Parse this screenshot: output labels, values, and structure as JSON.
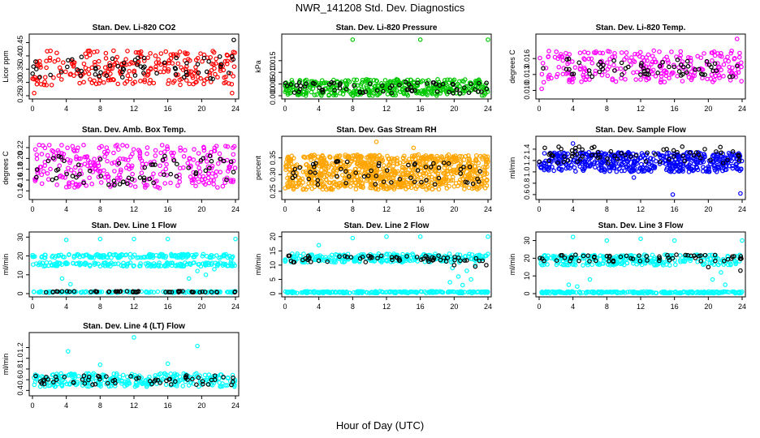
{
  "figure": {
    "title": "NWR_141208 Std. Dev. Diagnostics",
    "xlabel": "Hour of Day (UTC)"
  },
  "chart_data": [
    {
      "type": "scatter",
      "title": "Stan. Dev. Li-820 CO2",
      "ylabel": "Licor ppm",
      "xlim": [
        0,
        24
      ],
      "ylim": [
        0.25,
        0.47
      ],
      "xticks": [
        0,
        4,
        8,
        12,
        16,
        20,
        24
      ],
      "yticks": [
        0.25,
        0.3,
        0.35,
        0.4,
        0.45
      ],
      "ytick_labels": [
        "0.25",
        "0.30",
        "0.35",
        "0.40",
        "0.45"
      ],
      "colors": [
        "#ff0000",
        "#000000"
      ],
      "series": [
        {
          "color": "#ff0000",
          "band": [
            0.29,
            0.42
          ],
          "n": 260,
          "seed": 11
        },
        {
          "color": "#000000",
          "band": [
            0.31,
            0.4
          ],
          "n": 60,
          "seed": 12
        },
        {
          "color": "#ff0000",
          "points": [
            [
              0.2,
              0.26
            ],
            [
              23.6,
              0.26
            ]
          ]
        },
        {
          "color": "#000000",
          "points": [
            [
              23.8,
              0.46
            ]
          ]
        }
      ]
    },
    {
      "type": "scatter",
      "title": "Stan. Dev. Li-820 Pressure",
      "ylabel": "kPa",
      "xlim": [
        0,
        24
      ],
      "ylim": [
        0,
        0.025
      ],
      "xticks": [
        0,
        4,
        8,
        12,
        16,
        20,
        24
      ],
      "yticks": [
        0.0,
        0.005,
        0.01,
        0.015
      ],
      "ytick_labels": [
        "0.000",
        "0.005",
        "0.010",
        "0.015"
      ],
      "colors": [
        "#00c800",
        "#000000"
      ],
      "series": [
        {
          "color": "#00c800",
          "band": [
            0.0,
            0.007
          ],
          "n": 420,
          "seed": 21
        },
        {
          "color": "#000000",
          "band": [
            0.001,
            0.006
          ],
          "n": 70,
          "seed": 22
        },
        {
          "color": "#00c800",
          "points": [
            [
              8,
              0.024
            ],
            [
              16,
              0.024
            ],
            [
              24,
              0.024
            ]
          ]
        }
      ]
    },
    {
      "type": "scatter",
      "title": "Stan. Dev. Li-820 Temp.",
      "ylabel": "degrees C",
      "xlim": [
        0,
        24
      ],
      "ylim": [
        0.009,
        0.02
      ],
      "xticks": [
        0,
        4,
        8,
        12,
        16,
        20,
        24
      ],
      "yticks": [
        0.01,
        0.013,
        0.016
      ],
      "ytick_labels": [
        "0.010",
        "0.013",
        "0.016"
      ],
      "colors": [
        "#ff00ff",
        "#000000"
      ],
      "series": [
        {
          "color": "#ff00ff",
          "band": [
            0.0115,
            0.0175
          ],
          "n": 260,
          "seed": 31
        },
        {
          "color": "#000000",
          "band": [
            0.0125,
            0.016
          ],
          "n": 60,
          "seed": 32
        },
        {
          "color": "#ff00ff",
          "points": [
            [
              23.4,
              0.0197
            ],
            [
              0.3,
              0.0103
            ]
          ]
        }
      ]
    },
    {
      "type": "scatter",
      "title": "Stan. Dev. Amb. Box Temp.",
      "ylabel": "degrees C",
      "xlim": [
        0,
        24
      ],
      "ylim": [
        0.13,
        0.235
      ],
      "xticks": [
        0,
        4,
        8,
        12,
        16,
        20,
        24
      ],
      "yticks": [
        0.14,
        0.16,
        0.18,
        0.2,
        0.22
      ],
      "ytick_labels": [
        "0.14",
        "0.16",
        "0.18",
        "0.20",
        "0.22"
      ],
      "colors": [
        "#ff00ff",
        "#000000"
      ],
      "series": [
        {
          "color": "#ff00ff",
          "band": [
            0.145,
            0.225
          ],
          "n": 300,
          "seed": 41
        },
        {
          "color": "#000000",
          "band": [
            0.15,
            0.205
          ],
          "n": 60,
          "seed": 42
        }
      ]
    },
    {
      "type": "scatter",
      "title": "Stan. Dev. Gas Stream RH",
      "ylabel": "percent",
      "xlim": [
        0,
        24
      ],
      "ylim": [
        0.235,
        0.405
      ],
      "xticks": [
        0,
        4,
        8,
        12,
        16,
        20,
        24
      ],
      "yticks": [
        0.25,
        0.3,
        0.35
      ],
      "ytick_labels": [
        "0.25",
        "0.30",
        "0.35"
      ],
      "colors": [
        "#ffa500",
        "#000000"
      ],
      "series": [
        {
          "color": "#ffa500",
          "band": [
            0.255,
            0.36
          ],
          "n": 900,
          "seed": 51
        },
        {
          "color": "#000000",
          "band": [
            0.27,
            0.34
          ],
          "n": 60,
          "seed": 52
        },
        {
          "color": "#ffa500",
          "points": [
            [
              10.8,
              0.398
            ],
            [
              15.2,
              0.38
            ]
          ]
        }
      ]
    },
    {
      "type": "scatter",
      "title": "Stan. Dev. Sample Flow",
      "ylabel": "ml/min",
      "xlim": [
        0,
        24
      ],
      "ylim": [
        0.57,
        1.57
      ],
      "xticks": [
        0,
        4,
        8,
        12,
        16,
        20,
        24
      ],
      "yticks": [
        0.6,
        0.8,
        1.0,
        1.2,
        1.4
      ],
      "ytick_labels": [
        "0.6",
        "0.8",
        "1.0",
        "1.2",
        "1.4"
      ],
      "colors": [
        "#0000ff",
        "#000000"
      ],
      "series": [
        {
          "color": "#0000ff",
          "band": [
            1.0,
            1.35
          ],
          "n": 500,
          "seed": 61
        },
        {
          "color": "#000000",
          "band": [
            1.15,
            1.45
          ],
          "n": 70,
          "seed": 62
        },
        {
          "color": "#0000ff",
          "points": [
            [
              15.8,
              0.6
            ],
            [
              23.8,
              0.62
            ],
            [
              11.2,
              0.9
            ],
            [
              4.0,
              1.5
            ]
          ]
        }
      ]
    },
    {
      "type": "scatter",
      "title": "Stan. Dev. Line 1 Flow",
      "ylabel": "ml/min",
      "xlim": [
        0,
        24
      ],
      "ylim": [
        0,
        31
      ],
      "xticks": [
        0,
        4,
        8,
        12,
        16,
        20,
        24
      ],
      "yticks": [
        0,
        10,
        20,
        30
      ],
      "ytick_labels": [
        "0",
        "10",
        "20",
        "30"
      ],
      "colors": [
        "#00ffff",
        "#000000"
      ],
      "series": [
        {
          "color": "#00ffff",
          "band": [
            19,
            21
          ],
          "n": 160,
          "seed": 71,
          "xrange": [
            0,
            24
          ]
        },
        {
          "color": "#00ffff",
          "band": [
            14.5,
            16.5
          ],
          "n": 160,
          "seed": 72,
          "xrange": [
            0,
            24
          ]
        },
        {
          "color": "#00ffff",
          "band": [
            0.5,
            1.2
          ],
          "n": 140,
          "seed": 73,
          "xrange": [
            0,
            24
          ]
        },
        {
          "color": "#000000",
          "band": [
            0.7,
            1.3
          ],
          "n": 50,
          "seed": 74,
          "xrange": [
            1.5,
            24
          ]
        },
        {
          "color": "#00ffff",
          "points": [
            [
              4,
              28.5
            ],
            [
              8,
              29
            ],
            [
              12,
              29
            ],
            [
              16,
              29
            ],
            [
              24,
              29
            ],
            [
              3.5,
              8
            ],
            [
              4.5,
              5
            ],
            [
              18.5,
              8
            ],
            [
              19.5,
              12
            ],
            [
              20.5,
              10
            ],
            [
              21.5,
              13
            ],
            [
              22.5,
              15
            ],
            [
              23.5,
              18
            ]
          ]
        }
      ]
    },
    {
      "type": "scatter",
      "title": "Stan. Dev. Line 2 Flow",
      "ylabel": "ml/min",
      "xlim": [
        0,
        24
      ],
      "ylim": [
        0,
        20.5
      ],
      "xticks": [
        0,
        4,
        8,
        12,
        16,
        20,
        24
      ],
      "yticks": [
        0,
        5,
        10,
        15,
        20
      ],
      "ytick_labels": [
        "0",
        "5",
        "10",
        "15",
        "20"
      ],
      "colors": [
        "#00ffff",
        "#000000"
      ],
      "series": [
        {
          "color": "#00ffff",
          "band": [
            11,
            14
          ],
          "n": 260,
          "seed": 81,
          "xrange": [
            0,
            24
          ]
        },
        {
          "color": "#00ffff",
          "band": [
            0.2,
            0.8
          ],
          "n": 220,
          "seed": 82,
          "xrange": [
            0,
            24
          ]
        },
        {
          "color": "#000000",
          "band": [
            11,
            13.5
          ],
          "n": 60,
          "seed": 83,
          "xrange": [
            0,
            24
          ]
        },
        {
          "color": "#00ffff",
          "points": [
            [
              4,
              17
            ],
            [
              8,
              19.5
            ],
            [
              12,
              20
            ],
            [
              16,
              20
            ],
            [
              24,
              20
            ],
            [
              19.5,
              4
            ],
            [
              20.5,
              6
            ],
            [
              21,
              3
            ],
            [
              21.5,
              8
            ],
            [
              22,
              5
            ],
            [
              22.5,
              10
            ],
            [
              19.8,
              9
            ]
          ]
        },
        {
          "color": "#000000",
          "points": [
            [
              20,
              10
            ],
            [
              22.5,
              9.5
            ],
            [
              23.8,
              10
            ]
          ]
        }
      ]
    },
    {
      "type": "scatter",
      "title": "Stan. Dev. Line 3 Flow",
      "ylabel": "ml/min",
      "xlim": [
        0,
        24
      ],
      "ylim": [
        0,
        33
      ],
      "xticks": [
        0,
        4,
        8,
        12,
        16,
        20,
        24
      ],
      "yticks": [
        0,
        10,
        20,
        30
      ],
      "ytick_labels": [
        "0",
        "10",
        "20",
        "30"
      ],
      "colors": [
        "#00ffff",
        "#000000"
      ],
      "series": [
        {
          "color": "#00ffff",
          "band": [
            16,
            22
          ],
          "n": 280,
          "seed": 91,
          "xrange": [
            0,
            24
          ]
        },
        {
          "color": "#00ffff",
          "band": [
            0.2,
            1.2
          ],
          "n": 220,
          "seed": 92,
          "xrange": [
            0,
            24
          ]
        },
        {
          "color": "#000000",
          "band": [
            18,
            22
          ],
          "n": 60,
          "seed": 93,
          "xrange": [
            0,
            24
          ]
        },
        {
          "color": "#00ffff",
          "points": [
            [
              4,
              32
            ],
            [
              8,
              30
            ],
            [
              12,
              31
            ],
            [
              16,
              30
            ],
            [
              24,
              30
            ],
            [
              3.5,
              5
            ],
            [
              4.5,
              4
            ],
            [
              6,
              8
            ],
            [
              20.5,
              8
            ],
            [
              21.5,
              12
            ],
            [
              22,
              5
            ]
          ]
        },
        {
          "color": "#000000",
          "points": [
            [
              23.8,
              13
            ],
            [
              20,
              15
            ]
          ]
        }
      ]
    },
    {
      "type": "scatter",
      "title": "Stan. Dev. Line 4 (LT) Flow",
      "ylabel": "ml/min",
      "xlim": [
        0,
        24
      ],
      "ylim": [
        0.36,
        1.42
      ],
      "xticks": [
        0,
        4,
        8,
        12,
        16,
        20,
        24
      ],
      "yticks": [
        0.4,
        0.6,
        0.8,
        1.0,
        1.2
      ],
      "ytick_labels": [
        "0.4",
        "0.6",
        "0.8",
        "1.0",
        "1.2"
      ],
      "colors": [
        "#00ffff",
        "#000000"
      ],
      "series": [
        {
          "color": "#00ffff",
          "band": [
            0.47,
            0.72
          ],
          "n": 300,
          "seed": 101,
          "xrange": [
            0,
            24
          ]
        },
        {
          "color": "#000000",
          "band": [
            0.5,
            0.68
          ],
          "n": 60,
          "seed": 102,
          "xrange": [
            0,
            24
          ]
        },
        {
          "color": "#00ffff",
          "points": [
            [
              4.2,
              1.13
            ],
            [
              12,
              1.39
            ],
            [
              19.5,
              1.23
            ],
            [
              16,
              0.9
            ],
            [
              8,
              0.88
            ]
          ]
        }
      ]
    }
  ]
}
